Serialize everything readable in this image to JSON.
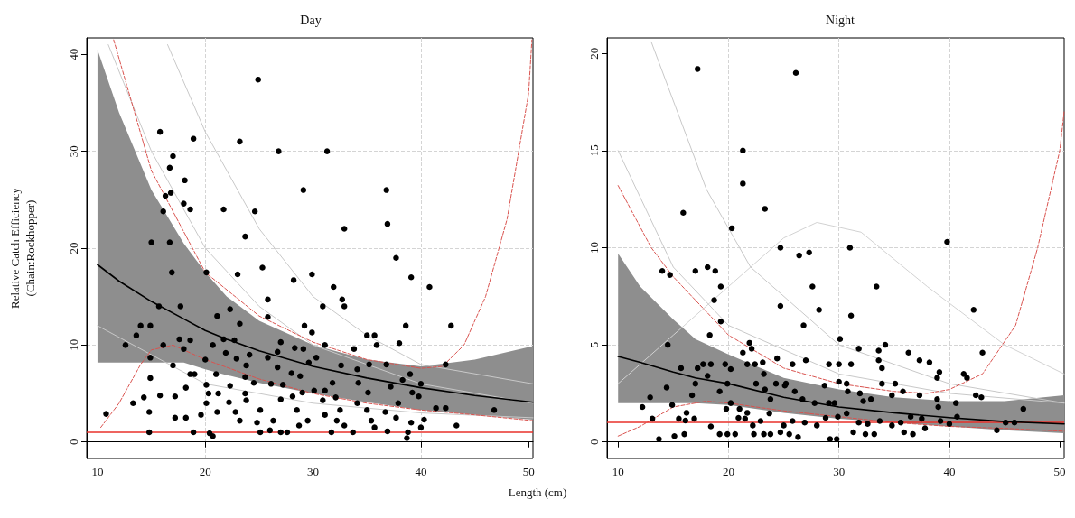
{
  "chart_data": [
    {
      "type": "scatter",
      "title": "Day",
      "xlabel": "Length (cm)",
      "ylabel": "Relative Catch Efficiency\n(Chain:Rockhopper)",
      "xlim": [
        9.0,
        50.4
      ],
      "ylim": [
        -1.7,
        41.7
      ],
      "xticks": [
        10,
        20,
        30,
        40,
        50
      ],
      "yticks": [
        0,
        10,
        20,
        30,
        40
      ],
      "grid": true,
      "ref_lines": [
        {
          "axis": "y",
          "value": 1,
          "color": "#e8302a"
        }
      ],
      "series": [
        {
          "type": "line",
          "color": "#c8c8c8",
          "x": [
            11,
            15,
            20,
            25,
            30,
            40,
            50.4
          ],
          "values": [
            41,
            30,
            20,
            14,
            10,
            6,
            4
          ]
        },
        {
          "type": "line",
          "color": "#c8c8c8",
          "x": [
            16.5,
            20,
            25,
            30,
            35,
            40,
            50.4
          ],
          "values": [
            41,
            32,
            22,
            15,
            11,
            8,
            6
          ]
        },
        {
          "type": "line",
          "color": "#c8c8c8",
          "x": [
            10,
            20,
            30,
            40,
            50.4
          ],
          "values": [
            12,
            6,
            4,
            3,
            2.5
          ]
        },
        {
          "type": "line",
          "color": "#d9534f",
          "line_style": "dashed",
          "x": [
            11.5,
            15,
            20,
            25,
            30,
            35,
            40,
            42,
            44,
            46,
            48,
            50,
            50.3
          ],
          "values": [
            41.5,
            28,
            17.5,
            13,
            10.3,
            8.5,
            7.6,
            7.8,
            10,
            15,
            23,
            36,
            41.5
          ]
        },
        {
          "type": "line",
          "color": "#d9534f",
          "line_style": "dashed",
          "x": [
            10.3,
            12,
            14,
            15,
            17,
            20,
            25,
            30,
            35,
            40,
            45,
            50.4
          ],
          "values": [
            1.5,
            4,
            8,
            9.5,
            10,
            8.5,
            6.5,
            5,
            4,
            3.3,
            2.8,
            2.2
          ]
        },
        {
          "type": "line",
          "color": "#000000",
          "x": [
            10,
            12,
            15,
            18,
            20,
            22,
            25,
            30,
            35,
            40,
            45,
            50.4
          ],
          "values": [
            18.3,
            16.6,
            14.5,
            12.7,
            11.5,
            10.6,
            9.4,
            7.8,
            6.6,
            5.6,
            4.8,
            4.1
          ],
          "lower": [
            8.2,
            8.2,
            8.2,
            8.2,
            7.5,
            6.9,
            6.1,
            5.0,
            4.1,
            3.3,
            2.8,
            2.3
          ],
          "upper": [
            40.5,
            34,
            26,
            20.5,
            17.5,
            15,
            12.5,
            10,
            8.5,
            7.8,
            8.5,
            9.9
          ]
        },
        {
          "marker": "circle",
          "color": "#000000",
          "x": [
            24.9,
            15.8,
            18.9,
            23.2,
            26.8,
            31.3,
            17.0,
            16.7,
            18.1,
            16.3,
            16.8,
            29.1,
            36.8,
            18.0,
            18.6,
            21.7,
            24.6,
            16.1,
            36.9,
            32.9,
            23.7,
            15.0,
            16.7,
            37.7,
            25.3,
            16.9,
            20.1,
            23.0,
            28.2,
            29.9,
            31.9,
            39.1,
            40.8,
            25.8,
            32.7,
            32.9,
            30.9,
            15.7,
            17.7,
            22.3,
            21.1,
            25.8,
            38.6,
            42.8,
            29.2,
            14.0,
            14.9,
            23.2,
            13.6,
            29.9,
            35.0,
            35.7,
            12.6,
            16.1,
            18.6,
            17.6,
            21.7,
            22.7,
            27.0,
            38.0,
            35.9,
            31.1,
            20.7,
            18.0,
            28.3,
            29.1,
            33.8,
            21.9,
            24.1,
            26.7,
            14.9,
            20.0,
            22.9,
            25.8,
            30.3,
            29.6,
            35.2,
            36.8,
            42.3,
            17.0,
            23.8,
            32.6,
            26.7,
            28.0,
            34.1,
            39.0,
            18.6,
            19.0,
            21.0,
            23.7,
            28.8,
            14.9,
            31.8,
            34.2,
            24.5,
            38.3,
            40.0,
            18.2,
            20.1,
            22.3,
            26.1,
            27.2,
            30.1,
            31.1,
            37.2,
            39.2,
            15.8,
            17.2,
            20.3,
            21.2,
            23.7,
            14.3,
            29.0,
            35.1,
            32.1,
            13.3,
            20.1,
            22.2,
            23.8,
            27.0,
            28.1,
            30.9,
            34.1,
            37.9,
            39.8,
            41.4,
            42.3,
            46.8,
            10.8,
            14.8,
            21.1,
            22.8,
            25.1,
            28.5,
            32.5,
            35.0,
            36.7,
            17.2,
            18.2,
            19.6,
            23.2,
            24.8,
            26.3,
            29.5,
            31.1,
            32.2,
            35.4,
            37.7,
            40.3,
            43.3,
            28.7,
            32.9,
            35.7,
            39.1,
            14.8,
            18.9,
            20.4,
            20.7,
            25.1,
            26.0,
            27.0,
            27.6,
            31.7,
            33.7,
            36.9,
            38.7,
            38.8,
            40.0
          ],
          "values": [
            37.4,
            32.0,
            31.3,
            31.0,
            30.0,
            30.0,
            29.5,
            28.3,
            27.0,
            25.4,
            25.7,
            26.0,
            26.0,
            24.6,
            24.0,
            24.0,
            23.8,
            23.8,
            22.5,
            22.0,
            21.2,
            20.6,
            20.6,
            19.0,
            18.0,
            17.5,
            17.5,
            17.3,
            16.7,
            17.3,
            16.0,
            17.0,
            16.0,
            14.7,
            14.7,
            14.0,
            14.0,
            14.0,
            14.0,
            13.7,
            13.0,
            12.9,
            12.0,
            12.0,
            12.0,
            12.0,
            12.0,
            12.2,
            11.0,
            11.3,
            11.0,
            11.0,
            10.0,
            10.0,
            10.5,
            10.6,
            10.6,
            10.5,
            10.3,
            10.2,
            10.0,
            10.0,
            10.0,
            9.6,
            9.7,
            9.6,
            9.6,
            9.2,
            9.0,
            9.3,
            8.7,
            8.5,
            8.6,
            8.7,
            8.7,
            8.2,
            8.0,
            8.0,
            8.0,
            7.9,
            7.9,
            7.9,
            7.7,
            7.1,
            7.5,
            7.0,
            7.0,
            7.0,
            7.0,
            6.7,
            6.8,
            6.6,
            6.1,
            6.1,
            6.1,
            6.4,
            6.0,
            5.6,
            5.9,
            5.8,
            6.0,
            5.9,
            5.3,
            5.3,
            5.7,
            5.1,
            4.8,
            4.7,
            5.0,
            5.0,
            5.0,
            4.6,
            5.1,
            5.1,
            4.6,
            4.0,
            4.0,
            4.1,
            4.3,
            4.4,
            4.7,
            4.3,
            4.0,
            4.0,
            4.7,
            3.5,
            3.5,
            3.3,
            2.9,
            3.1,
            3.1,
            3.1,
            3.3,
            3.3,
            3.3,
            3.3,
            3.1,
            2.5,
            2.5,
            2.8,
            2.2,
            2.0,
            2.2,
            2.2,
            2.8,
            2.2,
            2.2,
            2.5,
            2.3,
            1.7,
            1.7,
            1.7,
            1.5,
            2.0,
            1.0,
            1.0,
            0.9,
            0.6,
            1.0,
            1.2,
            1.0,
            1.0,
            1.0,
            1.0,
            1.1,
            0.4,
            1.0,
            1.5
          ]
        }
      ]
    },
    {
      "type": "scatter",
      "title": "Night",
      "xlim": [
        9.0,
        50.4
      ],
      "ylim": [
        -0.85,
        20.8
      ],
      "xticks": [
        10,
        20,
        30,
        40,
        50
      ],
      "yticks": [
        0,
        5,
        10,
        15,
        20
      ],
      "grid": true,
      "ref_lines": [
        {
          "axis": "y",
          "value": 1,
          "color": "#e8302a"
        }
      ],
      "series": [
        {
          "type": "line",
          "color": "#d2d2d2",
          "x": [
            10,
            15,
            20,
            25,
            28,
            32,
            38,
            45,
            50.4
          ],
          "values": [
            3,
            5.5,
            8,
            10.5,
            11.3,
            10.8,
            8,
            5,
            3.5
          ]
        },
        {
          "type": "line",
          "color": "#c8c8c8",
          "x": [
            13,
            18,
            22,
            30,
            40,
            50.4
          ],
          "values": [
            20.6,
            13,
            9,
            5,
            3,
            2
          ]
        },
        {
          "type": "line",
          "color": "#c8c8c8",
          "x": [
            10,
            15,
            20,
            30,
            40,
            50.4
          ],
          "values": [
            15,
            9,
            6,
            3.5,
            2.5,
            2
          ]
        },
        {
          "type": "line",
          "color": "#d9534f",
          "line_style": "dashed",
          "x": [
            10,
            13,
            15,
            20,
            25,
            30,
            35,
            38,
            40,
            43,
            46,
            48,
            50,
            50.4
          ],
          "values": [
            13.2,
            10,
            8.5,
            5.5,
            3.8,
            3.0,
            2.6,
            2.5,
            2.7,
            3.5,
            6,
            10,
            15,
            17
          ]
        },
        {
          "type": "line",
          "color": "#d9534f",
          "line_style": "dashed",
          "x": [
            10,
            12,
            15,
            18,
            20,
            25,
            30,
            35,
            40,
            45,
            50.4
          ],
          "values": [
            0.3,
            0.8,
            1.8,
            2.1,
            2.0,
            1.6,
            1.3,
            1.0,
            0.8,
            0.7,
            0.55
          ]
        },
        {
          "type": "line",
          "color": "#000000",
          "x": [
            10,
            12,
            15,
            17,
            20,
            25,
            30,
            35,
            40,
            45,
            50.4
          ],
          "values": [
            4.4,
            4.1,
            3.6,
            3.3,
            3.0,
            2.3,
            1.8,
            1.5,
            1.25,
            1.05,
            0.93
          ],
          "lower": [
            2.0,
            2.0,
            2.0,
            2.0,
            1.9,
            1.5,
            1.2,
            1.0,
            0.8,
            0.6,
            0.45
          ],
          "upper": [
            9.7,
            8,
            6.3,
            5.3,
            4.5,
            3.3,
            2.7,
            2.3,
            2.1,
            2.1,
            2.4
          ]
        },
        {
          "marker": "circle",
          "color": "#000000",
          "x": [
            17.2,
            26.1,
            21.3,
            21.3,
            23.3,
            15.9,
            20.3,
            39.8,
            24.7,
            31.0,
            26.4,
            27.3,
            14.0,
            14.7,
            17.0,
            18.1,
            18.8,
            19.3,
            18.7,
            19.3,
            18.3,
            27.6,
            33.4,
            28.2,
            24.7,
            31.1,
            26.8,
            42.2,
            43.0,
            30.1,
            14.5,
            21.9,
            22.1,
            31.8,
            33.6,
            34.2,
            36.3,
            37.3,
            38.2,
            21.3,
            24.4,
            27.0,
            15.7,
            17.2,
            17.7,
            18.4,
            19.7,
            20.2,
            21.7,
            22.4,
            23.1,
            23.2,
            25.8,
            29.1,
            30.0,
            31.1,
            39.1,
            38.9,
            41.3,
            41.6,
            33.6,
            33.9,
            14.4,
            12.9,
            12.2,
            13.1,
            13.7,
            15.1,
            16.0,
            16.7,
            17.0,
            18.1,
            14.9,
            15.5,
            16.2,
            19.2,
            19.9,
            20.2,
            19.8,
            21.0,
            21.7,
            22.5,
            23.3,
            23.8,
            24.3,
            25.2,
            25.1,
            26.0,
            26.7,
            27.8,
            28.7,
            29.1,
            29.6,
            30.0,
            30.7,
            30.8,
            31.9,
            32.2,
            32.9,
            33.9,
            35.1,
            34.8,
            35.8,
            37.3,
            38.9,
            39.0,
            40.6,
            42.4,
            42.9,
            46.7,
            45.1,
            45.9,
            44.3,
            37.8,
            36.7,
            35.9,
            33.2,
            32.4,
            31.3,
            29.2,
            29.8,
            26.3,
            25.5,
            24.7,
            23.8,
            23.2,
            22.3,
            20.6,
            19.9,
            19.2,
            18.4,
            16.9,
            16.1,
            20.9,
            21.5,
            22.2,
            22.9,
            23.7,
            25.0,
            25.8,
            26.9,
            28.0,
            28.8,
            29.9,
            30.7,
            31.8,
            32.6,
            33.7,
            34.8,
            35.6,
            36.5,
            37.5,
            39.2,
            40.0,
            40.7
          ],
          "values": [
            19.2,
            19.0,
            15.0,
            13.3,
            12.0,
            11.8,
            11.0,
            10.3,
            10.0,
            10.0,
            9.6,
            9.75,
            8.8,
            8.6,
            8.8,
            9.0,
            8.8,
            8.0,
            7.3,
            6.2,
            5.5,
            8.0,
            8.0,
            6.8,
            7.0,
            6.5,
            6.0,
            6.8,
            4.6,
            5.3,
            5.0,
            5.1,
            4.8,
            4.8,
            4.7,
            5.0,
            4.6,
            4.2,
            4.1,
            4.6,
            4.3,
            4.2,
            3.8,
            3.8,
            4.0,
            4.0,
            4.0,
            3.75,
            4.0,
            4.0,
            4.1,
            3.5,
            4.0,
            4.0,
            4.0,
            4.0,
            3.6,
            3.3,
            3.5,
            3.3,
            4.2,
            3.8,
            2.8,
            2.3,
            1.8,
            1.2,
            0.15,
            0.3,
            0.4,
            2.4,
            3.0,
            3.4,
            1.9,
            1.2,
            1.5,
            2.6,
            3.0,
            2.0,
            1.7,
            1.7,
            1.5,
            3.0,
            2.7,
            2.2,
            3.0,
            3.0,
            2.9,
            2.6,
            2.2,
            2.0,
            2.9,
            2.0,
            2.0,
            3.1,
            3.0,
            2.6,
            2.5,
            2.1,
            2.2,
            3.0,
            3.0,
            2.4,
            2.6,
            2.4,
            2.2,
            1.8,
            2.0,
            2.4,
            2.3,
            1.7,
            1.0,
            1.0,
            0.6,
            0.7,
            0.4,
            0.5,
            0.4,
            0.4,
            0.5,
            0.15,
            0.15,
            0.25,
            0.4,
            0.5,
            0.4,
            0.4,
            0.4,
            0.4,
            0.4,
            0.4,
            0.8,
            1.2,
            1.1,
            1.24,
            1.2,
            0.85,
            1.08,
            1.47,
            0.85,
            1.08,
            1.0,
            0.85,
            1.24,
            1.3,
            1.47,
            1.0,
            0.93,
            1.08,
            0.85,
            1.0,
            1.3,
            1.2,
            1.08,
            0.93,
            1.3
          ]
        }
      ]
    }
  ]
}
